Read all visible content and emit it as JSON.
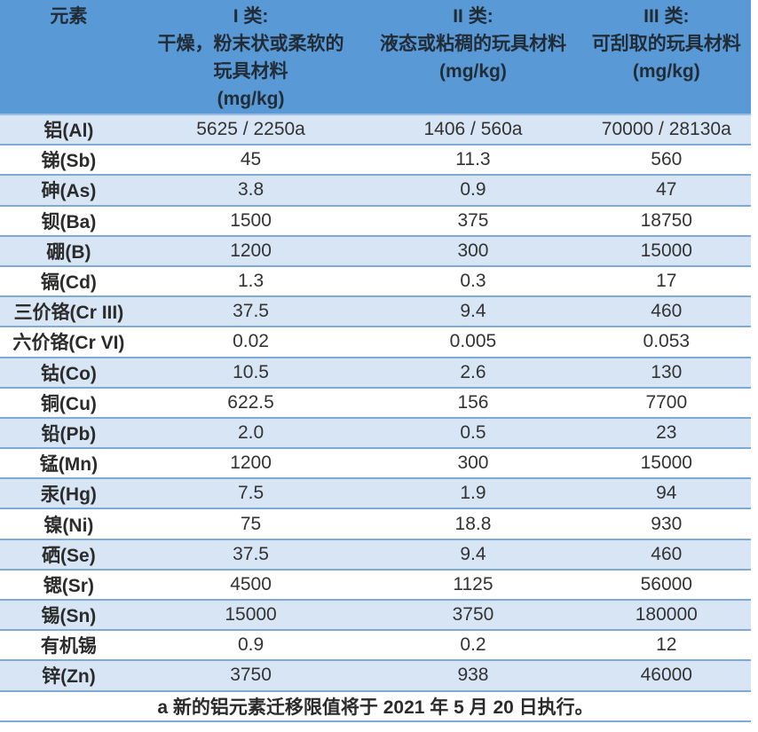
{
  "table": {
    "header": {
      "col1": {
        "line1": "元素"
      },
      "col2": {
        "line1": "I 类:",
        "line2": "干燥，粉末状或柔软的",
        "line3": "玩具材料",
        "line4": "(mg/kg)"
      },
      "col3": {
        "line1": "II 类:",
        "line2": "液态或粘稠的玩具材料",
        "line3": "(mg/kg)"
      },
      "col4": {
        "line1": "III 类:",
        "line2": "可刮取的玩具材料",
        "line3": "(mg/kg)"
      }
    },
    "rows": [
      {
        "element": "铝(Al)",
        "class_i": "5625 / 2250a",
        "class_ii": "1406 / 560a",
        "class_iii": "70000 / 28130a"
      },
      {
        "element": "锑(Sb)",
        "class_i": "45",
        "class_ii": "11.3",
        "class_iii": "560"
      },
      {
        "element": "砷(As)",
        "class_i": "3.8",
        "class_ii": "0.9",
        "class_iii": "47"
      },
      {
        "element": "钡(Ba)",
        "class_i": "1500",
        "class_ii": "375",
        "class_iii": "18750"
      },
      {
        "element": "硼(B)",
        "class_i": "1200",
        "class_ii": "300",
        "class_iii": "15000"
      },
      {
        "element": "镉(Cd)",
        "class_i": "1.3",
        "class_ii": "0.3",
        "class_iii": "17"
      },
      {
        "element": "三价铬(Cr III)",
        "class_i": "37.5",
        "class_ii": "9.4",
        "class_iii": "460"
      },
      {
        "element": "六价铬(Cr VI)",
        "class_i": "0.02",
        "class_ii": "0.005",
        "class_iii": "0.053"
      },
      {
        "element": "钴(Co)",
        "class_i": "10.5",
        "class_ii": "2.6",
        "class_iii": "130"
      },
      {
        "element": "铜(Cu)",
        "class_i": "622.5",
        "class_ii": "156",
        "class_iii": "7700"
      },
      {
        "element": "铅(Pb)",
        "class_i": "2.0",
        "class_ii": "0.5",
        "class_iii": "23"
      },
      {
        "element": "锰(Mn)",
        "class_i": "1200",
        "class_ii": "300",
        "class_iii": "15000"
      },
      {
        "element": "汞(Hg)",
        "class_i": "7.5",
        "class_ii": "1.9",
        "class_iii": "94"
      },
      {
        "element": "镍(Ni)",
        "class_i": "75",
        "class_ii": "18.8",
        "class_iii": "930"
      },
      {
        "element": "硒(Se)",
        "class_i": "37.5",
        "class_ii": "9.4",
        "class_iii": "460"
      },
      {
        "element": "锶(Sr)",
        "class_i": "4500",
        "class_ii": "1125",
        "class_iii": "56000"
      },
      {
        "element": "锡(Sn)",
        "class_i": "15000",
        "class_ii": "3750",
        "class_iii": "180000"
      },
      {
        "element": "有机锡",
        "class_i": "0.9",
        "class_ii": "0.2",
        "class_iii": "12"
      },
      {
        "element": "锌(Zn)",
        "class_i": "3750",
        "class_ii": "938",
        "class_iii": "46000"
      }
    ],
    "footnote": "a 新的铝元素迁移限值将于 2021 年 5 月 20 日执行。"
  },
  "colors": {
    "header_bg": "#5899D6",
    "header_border": "#9CBEE5",
    "header_text": "#222C36",
    "row_bg": "#FFFFFF",
    "row_alt_bg": "#D7E5F4",
    "border": "#7FA9D6",
    "text": "#333333"
  }
}
